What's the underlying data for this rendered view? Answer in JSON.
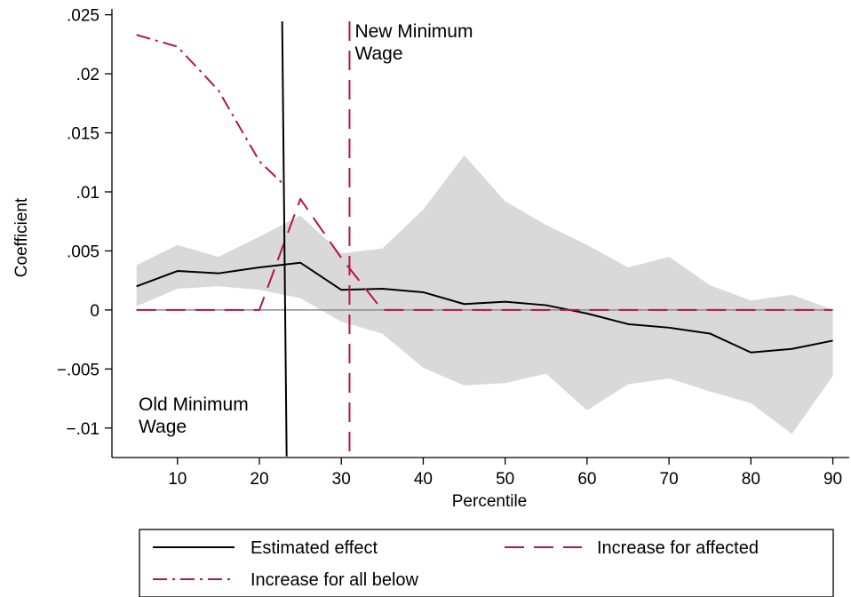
{
  "chart_data": {
    "type": "line",
    "title": "",
    "xlabel": "Percentile",
    "ylabel": "Coefficient",
    "xlim": [
      2,
      92
    ],
    "ylim": [
      -0.0125,
      0.0255
    ],
    "x_ticks": [
      10,
      20,
      30,
      40,
      50,
      60,
      70,
      80,
      90
    ],
    "x_tick_labels": [
      "10",
      "20",
      "30",
      "40",
      "50",
      "60",
      "70",
      "80",
      "90"
    ],
    "y_ticks": [
      -0.01,
      -0.005,
      0,
      0.005,
      0.01,
      0.015,
      0.02,
      0.025
    ],
    "y_tick_labels": [
      "−.01",
      "−.005",
      "0",
      ".005",
      ".01",
      ".015",
      ".02",
      ".025"
    ],
    "grid": false,
    "legend_position": "bottom",
    "x": [
      5,
      10,
      15,
      20,
      25,
      30,
      35,
      40,
      45,
      50,
      55,
      60,
      65,
      70,
      75,
      80,
      85,
      90
    ],
    "confidence_band": {
      "upper": [
        0.0038,
        0.0055,
        0.0045,
        0.0062,
        0.008,
        0.0048,
        0.0052,
        0.0085,
        0.0131,
        0.0092,
        0.0072,
        0.0055,
        0.0036,
        0.0045,
        0.0021,
        0.0008,
        0.0013,
        0.0
      ],
      "lower": [
        0.0003,
        0.0018,
        0.002,
        0.0017,
        0.001,
        -0.001,
        -0.002,
        -0.0049,
        -0.0064,
        -0.0062,
        -0.0054,
        -0.0085,
        -0.0063,
        -0.0058,
        -0.0069,
        -0.0079,
        -0.0105,
        -0.0056
      ],
      "color": "#d9d9d9"
    },
    "series": [
      {
        "name": "Estimated effect",
        "style": "solid",
        "color": "#000000",
        "x": [
          5,
          10,
          15,
          20,
          25,
          30,
          35,
          40,
          45,
          50,
          55,
          60,
          65,
          70,
          75,
          80,
          85,
          90
        ],
        "y": [
          0.002,
          0.0033,
          0.0031,
          0.0036,
          0.004,
          0.0017,
          0.0018,
          0.0015,
          0.0005,
          0.0007,
          0.0004,
          -0.0003,
          -0.0012,
          -0.0015,
          -0.002,
          -0.0036,
          -0.0033,
          -0.0026
        ]
      },
      {
        "name": "Increase for affected",
        "style": "dash",
        "color": "#b5144a",
        "x": [
          5,
          10,
          15,
          20,
          25,
          30,
          35,
          40,
          45,
          50,
          55,
          60,
          65,
          70,
          75,
          80,
          85,
          90
        ],
        "y": [
          0,
          0,
          0,
          0,
          0.0094,
          0.0044,
          0,
          0,
          0,
          0,
          0,
          0,
          0,
          0,
          0,
          0,
          0,
          0
        ]
      },
      {
        "name": "Increase for all below",
        "style": "dashdot",
        "color": "#b5144a",
        "x": [
          5,
          10,
          15,
          20,
          23
        ],
        "y": [
          0.0233,
          0.0223,
          0.0186,
          0.0126,
          0.0106
        ]
      }
    ],
    "reference_lines": [
      {
        "id": "old-minimum-wage",
        "x": 23,
        "style": "solid",
        "color": "#000000",
        "label_line1": "Old Minimum",
        "label_line2": "Wage"
      },
      {
        "id": "new-minimum-wage",
        "x": 31,
        "style": "dash",
        "color": "#b5144a",
        "label_line1": "New Minimum",
        "label_line2": "Wage"
      }
    ],
    "zero_line_color": "#8c8c8c"
  }
}
